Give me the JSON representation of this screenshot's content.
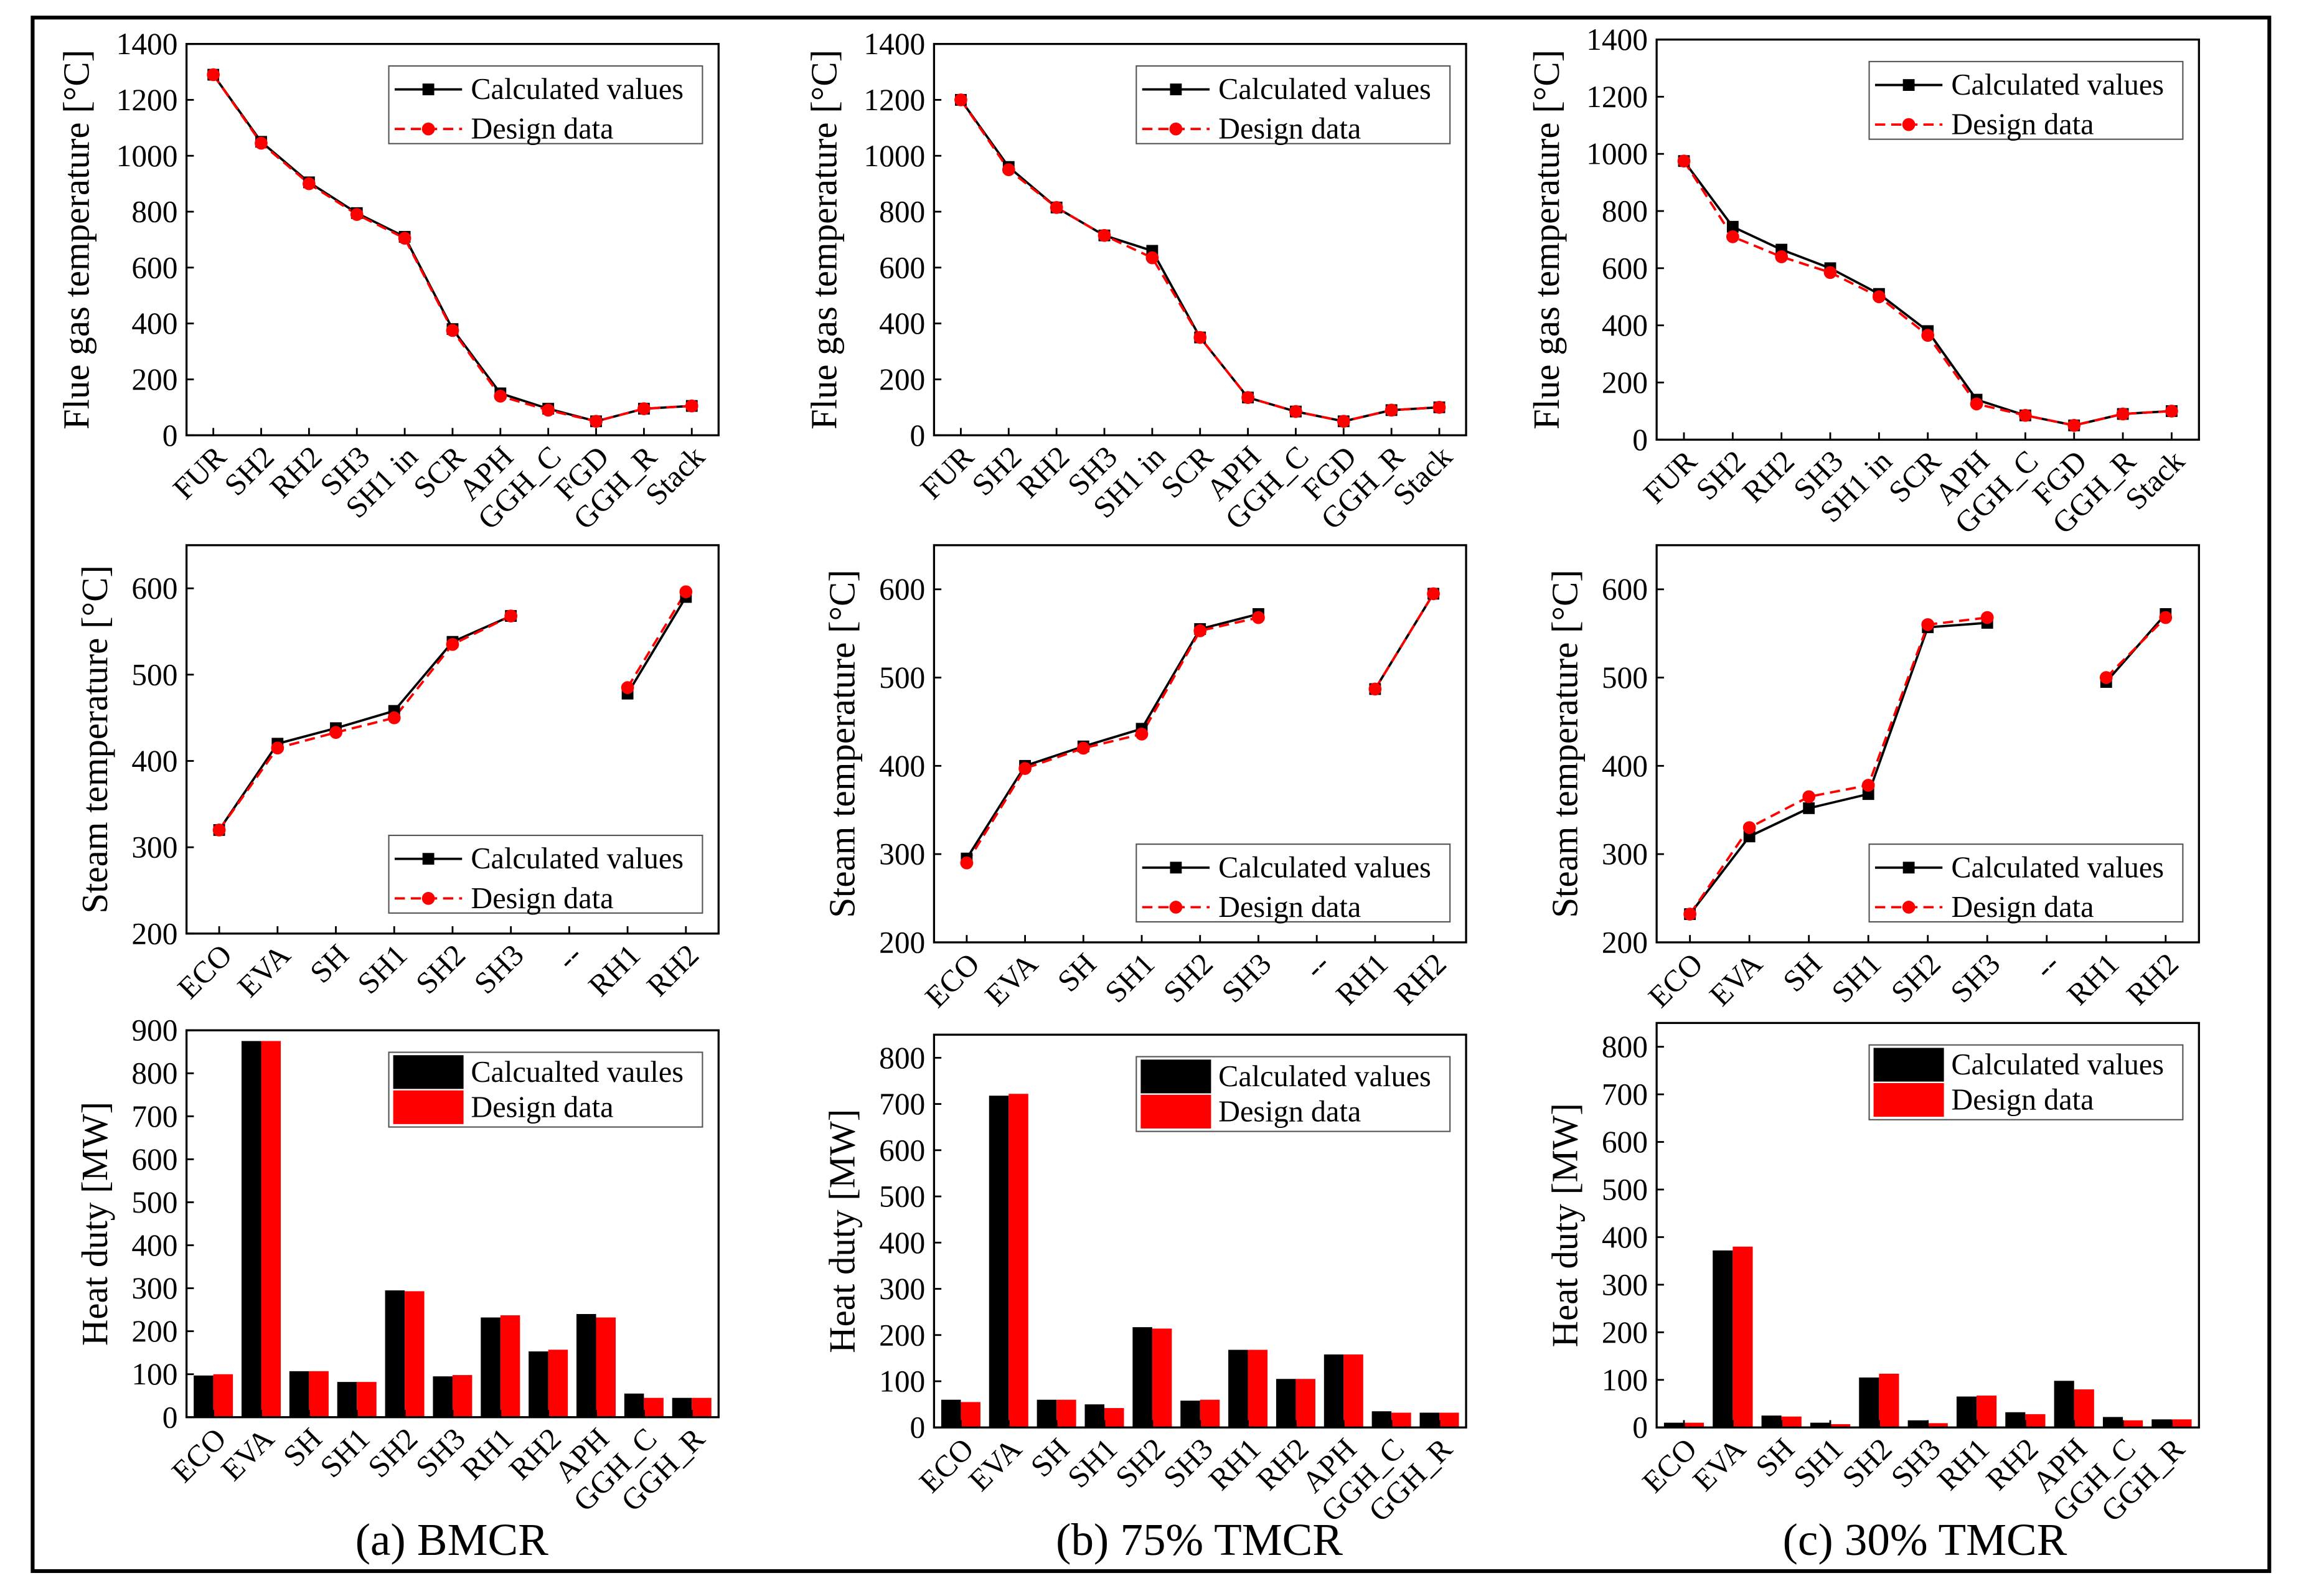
{
  "captions": [
    "(a) BMCR",
    "(b) 75% TMCR",
    "(c) 30% TMCR"
  ],
  "colors": {
    "calculated": "#000000",
    "design": "#ff0000",
    "frame": "#000000",
    "background": "#ffffff"
  },
  "chart_data": [
    {
      "type": "line",
      "ylabel": "Flue gas temperature [°C]",
      "categories": [
        "FUR",
        "SH2",
        "RH2",
        "SH3",
        "SH1 in",
        "SCR",
        "APH",
        "GGH_C",
        "FGD",
        "GGH_R",
        "Stack"
      ],
      "ylim": [
        0,
        1400
      ],
      "yticks": [
        0,
        200,
        400,
        600,
        800,
        1000,
        1200,
        1400
      ],
      "legend": "top-right",
      "series": [
        {
          "name": "Calculated values",
          "color": "#000000",
          "values": [
            1290,
            1050,
            905,
            795,
            710,
            380,
            150,
            95,
            50,
            95,
            105
          ]
        },
        {
          "name": "Design data",
          "color": "#ff0000",
          "values": [
            1290,
            1045,
            900,
            790,
            705,
            375,
            140,
            90,
            50,
            95,
            105
          ]
        }
      ]
    },
    {
      "type": "line",
      "ylabel": "Flue gas temperature [°C]",
      "categories": [
        "FUR",
        "SH2",
        "RH2",
        "SH3",
        "SH1 in",
        "SCR",
        "APH",
        "GGH_C",
        "FGD",
        "GGH_R",
        "Stack"
      ],
      "ylim": [
        0,
        1400
      ],
      "yticks": [
        0,
        200,
        400,
        600,
        800,
        1000,
        1200,
        1400
      ],
      "legend": "top-right",
      "series": [
        {
          "name": "Calculated values",
          "color": "#000000",
          "values": [
            1200,
            960,
            815,
            715,
            660,
            350,
            135,
            85,
            50,
            90,
            100
          ]
        },
        {
          "name": "Design data",
          "color": "#ff0000",
          "values": [
            1200,
            950,
            815,
            715,
            635,
            350,
            135,
            85,
            50,
            90,
            100
          ]
        }
      ]
    },
    {
      "type": "line",
      "ylabel": "Flue gas temperature [°C]",
      "categories": [
        "FUR",
        "SH2",
        "RH2",
        "SH3",
        "SH1 in",
        "SCR",
        "APH",
        "GGH_C",
        "FGD",
        "GGH_R",
        "Stack"
      ],
      "ylim": [
        0,
        1400
      ],
      "yticks": [
        0,
        200,
        400,
        600,
        800,
        1000,
        1200,
        1400
      ],
      "legend": "top-right",
      "series": [
        {
          "name": "Calculated values",
          "color": "#000000",
          "values": [
            975,
            745,
            665,
            600,
            510,
            380,
            140,
            85,
            50,
            90,
            100
          ]
        },
        {
          "name": "Design data",
          "color": "#ff0000",
          "values": [
            975,
            710,
            640,
            585,
            500,
            365,
            125,
            85,
            50,
            90,
            100
          ]
        }
      ]
    },
    {
      "type": "line",
      "ylabel": "Steam temperature [°C]",
      "categories": [
        "ECO",
        "EVA",
        "SH",
        "SH1",
        "SH2",
        "SH3",
        "--",
        "RH1",
        "RH2"
      ],
      "ylim": [
        200,
        650
      ],
      "yticks": [
        200,
        300,
        400,
        500,
        600
      ],
      "legend": "bottom-right",
      "series": [
        {
          "name": "Calculated values",
          "color": "#000000",
          "values": [
            320,
            420,
            438,
            458,
            538,
            568,
            null,
            478,
            590
          ]
        },
        {
          "name": "Design data",
          "color": "#ff0000",
          "values": [
            320,
            415,
            433,
            450,
            535,
            568,
            null,
            485,
            596
          ]
        }
      ]
    },
    {
      "type": "line",
      "ylabel": "Steam temperature [°C]",
      "categories": [
        "ECO",
        "EVA",
        "SH",
        "SH1",
        "SH2",
        "SH3",
        "--",
        "RH1",
        "RH2"
      ],
      "ylim": [
        200,
        650
      ],
      "yticks": [
        200,
        300,
        400,
        500,
        600
      ],
      "legend": "bottom-right",
      "series": [
        {
          "name": "Calculated values",
          "color": "#000000",
          "values": [
            295,
            400,
            422,
            442,
            555,
            572,
            null,
            487,
            595
          ]
        },
        {
          "name": "Design data",
          "color": "#ff0000",
          "values": [
            290,
            397,
            420,
            436,
            553,
            568,
            null,
            487,
            595
          ]
        }
      ]
    },
    {
      "type": "line",
      "ylabel": "Steam temperature [°C]",
      "categories": [
        "ECO",
        "EVA",
        "SH",
        "SH1",
        "SH2",
        "SH3",
        "--",
        "RH1",
        "RH2"
      ],
      "ylim": [
        200,
        650
      ],
      "yticks": [
        200,
        300,
        400,
        500,
        600
      ],
      "legend": "bottom-right",
      "series": [
        {
          "name": "Calculated values",
          "color": "#000000",
          "values": [
            232,
            320,
            352,
            368,
            557,
            562,
            null,
            495,
            572
          ]
        },
        {
          "name": "Design data",
          "color": "#ff0000",
          "values": [
            232,
            330,
            365,
            378,
            560,
            568,
            null,
            500,
            568
          ]
        }
      ]
    },
    {
      "type": "bar",
      "ylabel": "Heat duty [MW]",
      "categories": [
        "ECO",
        "EVA",
        "SH",
        "SH1",
        "SH2",
        "SH3",
        "RH1",
        "RH2",
        "APH",
        "GGH_C",
        "GGH_R"
      ],
      "ylim": [
        0,
        900
      ],
      "yticks": [
        0,
        100,
        200,
        300,
        400,
        500,
        600,
        700,
        800,
        900
      ],
      "legend": "top-right",
      "series": [
        {
          "name": "Calcualted vaules",
          "color": "#000000",
          "values": [
            97,
            875,
            107,
            82,
            295,
            95,
            232,
            153,
            240,
            55,
            45
          ]
        },
        {
          "name": "Design data",
          "color": "#ff0000",
          "values": [
            100,
            875,
            107,
            82,
            293,
            98,
            237,
            157,
            232,
            45,
            45
          ]
        }
      ]
    },
    {
      "type": "bar",
      "ylabel": "Heat duty [MW]",
      "categories": [
        "ECO",
        "EVA",
        "SH",
        "SH1",
        "SH2",
        "SH3",
        "RH1",
        "RH2",
        "APH",
        "GGH_C",
        "GGH_R"
      ],
      "ylim": [
        0,
        850
      ],
      "yticks": [
        0,
        100,
        200,
        300,
        400,
        500,
        600,
        700,
        800
      ],
      "legend": "top-right",
      "series": [
        {
          "name": "Calculated values",
          "color": "#000000",
          "values": [
            60,
            718,
            60,
            50,
            217,
            58,
            168,
            105,
            158,
            35,
            32
          ]
        },
        {
          "name": "Design data",
          "color": "#ff0000",
          "values": [
            55,
            722,
            60,
            42,
            214,
            60,
            168,
            105,
            158,
            32,
            32
          ]
        }
      ]
    },
    {
      "type": "bar",
      "ylabel": "Heat duty [MW]",
      "categories": [
        "ECO",
        "EVA",
        "SH",
        "SH1",
        "SH2",
        "SH3",
        "RH1",
        "RH2",
        "APH",
        "GGH_C",
        "GGH_R"
      ],
      "ylim": [
        0,
        850
      ],
      "yticks": [
        0,
        100,
        200,
        300,
        400,
        500,
        600,
        700,
        800
      ],
      "legend": "top-right",
      "series": [
        {
          "name": "Calculated values",
          "color": "#000000",
          "values": [
            10,
            372,
            25,
            10,
            105,
            15,
            65,
            32,
            98,
            22,
            17
          ]
        },
        {
          "name": "Design data",
          "color": "#ff0000",
          "values": [
            10,
            380,
            23,
            7,
            113,
            9,
            67,
            28,
            80,
            15,
            17
          ]
        }
      ]
    }
  ]
}
